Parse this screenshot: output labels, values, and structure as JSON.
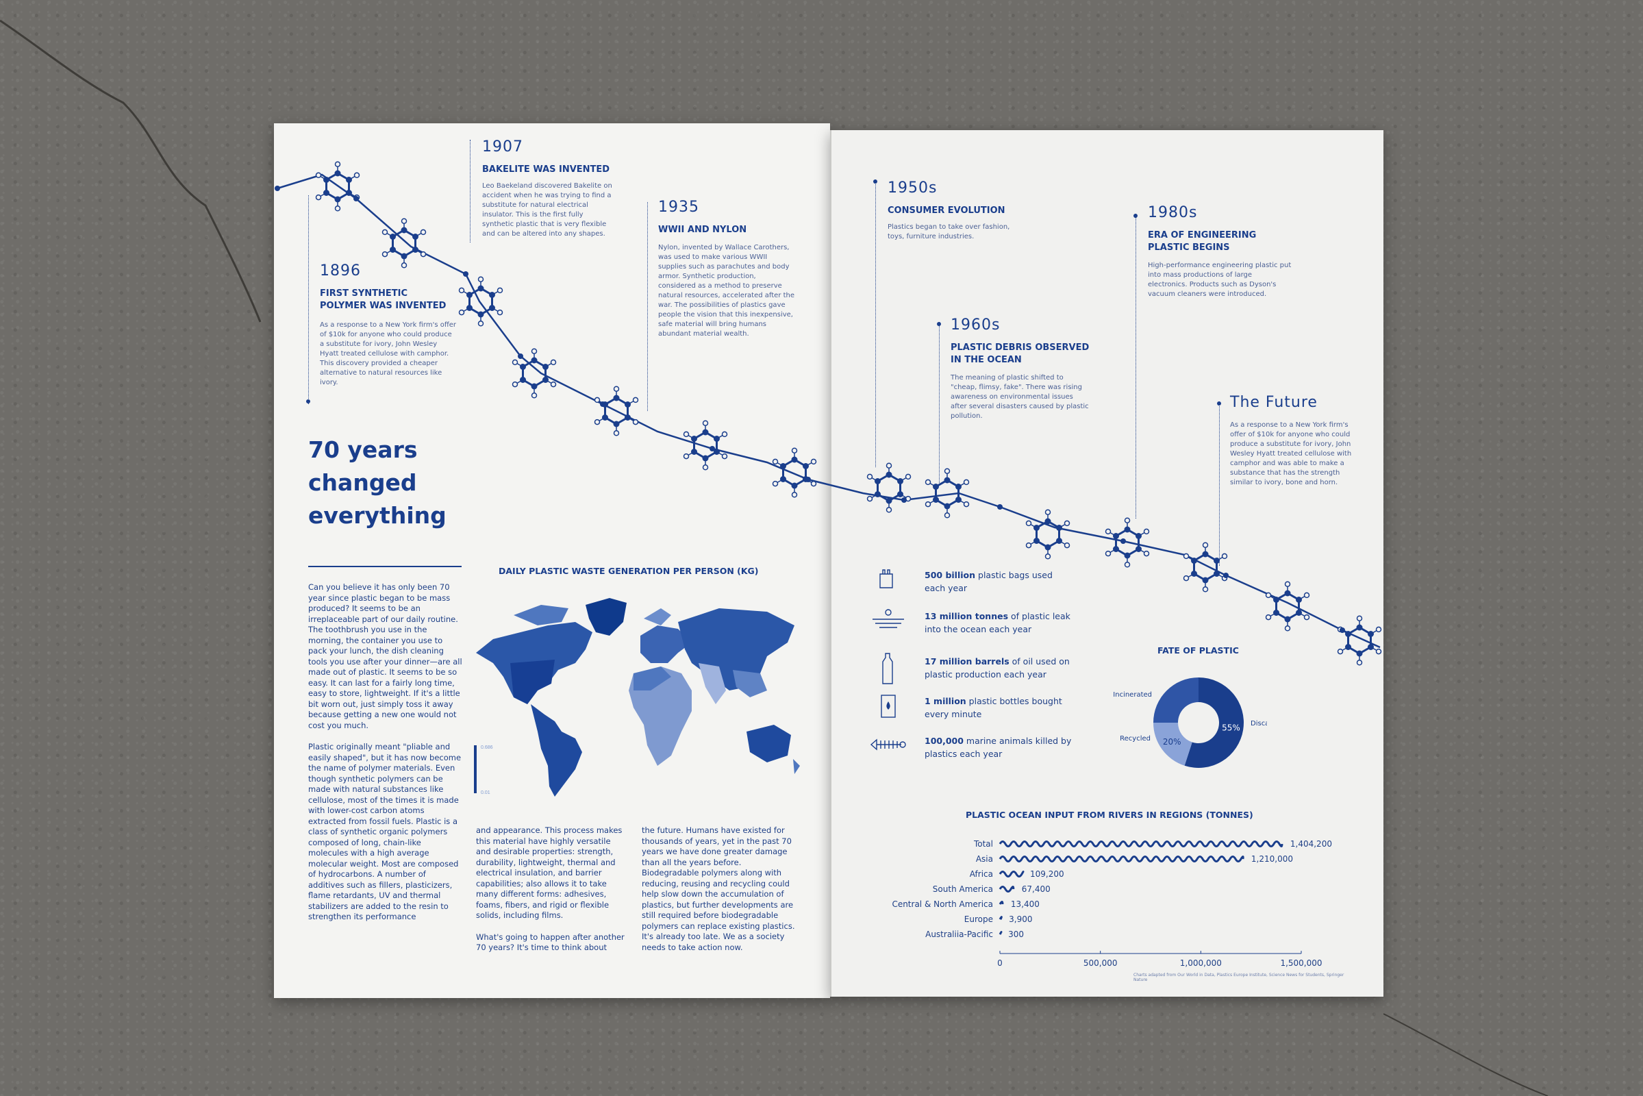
{
  "timeline": [
    {
      "year": "1896",
      "title": "FIRST SYNTHETIC POLYMER WAS INVENTED",
      "body": "As a response to a New York firm's offer of $10k for anyone who could produce a substitute for ivory, John Wesley Hyatt treated cellulose with camphor. This discovery provided a cheaper alternative to natural resources like ivory."
    },
    {
      "year": "1907",
      "title": "BAKELITE WAS INVENTED",
      "body": "Leo Baekeland discovered Bakelite on accident when he was trying to find a substitute for natural electrical insulator. This is the first fully synthetic plastic that is very flexible and can be altered into any shapes."
    },
    {
      "year": "1935",
      "title": "WWII AND NYLON",
      "body": "Nylon, invented by Wallace Carothers, was used to make various WWII supplies such as parachutes and body armor. Synthetic production, considered as a method to preserve natural resources, accelerated after the war. The possibilities of plastics gave people the vision that this inexpensive, safe material will bring humans abundant material wealth."
    },
    {
      "year": "1950s",
      "title": "CONSUMER EVOLUTION",
      "body": "Plastics began to take over fashion, toys, furniture industries."
    },
    {
      "year": "1960s",
      "title": "PLASTIC DEBRIS OBSERVED IN THE OCEAN",
      "body": "The meaning of plastic shifted to \"cheap, flimsy, fake\". There was rising awareness on environmental issues after several disasters caused by plastic pollution."
    },
    {
      "year": "1980s",
      "title": "ERA OF ENGINEERING PLASTIC BEGINS",
      "body": "High-performance engineering plastic put into mass productions of large electronics. Products such as Dyson's vacuum cleaners were introduced."
    },
    {
      "year": "The Future",
      "title": "",
      "body": "As a response to a New York firm's offer of $10k for anyone who could produce a substitute for ivory, John Wesley Hyatt treated cellulose with camphor and was able to make a substance that has the strength similar to ivory, bone and horn."
    }
  ],
  "headline": "70 years changed everything",
  "article": {
    "col1_p1": "Can you believe it has only been 70 year since plastic began to be mass produced? It seems to be an irreplaceable part of our daily routine. The toothbrush you use in the morning, the container you use to pack your lunch, the dish cleaning tools you use after your dinner—are all made out of plastic. It seems to be so easy. It can last for a fairly long time, easy to store, lightweight. If it's a little bit worn out, just simply toss it away because getting a new one would not cost you much.",
    "col1_p2": "Plastic originally meant \"pliable and easily shaped\", but it has now become the name of polymer materials. Even though synthetic polymers can be made with natural substances like cellulose, most of the times it is made with lower-cost carbon atoms extracted from fossil fuels. Plastic is a class of synthetic organic polymers composed of long, chain-like molecules with a high average molecular weight. Most are composed of hydrocarbons. A number of additives such as fillers, plasticizers, flame retardants, UV and thermal stabilizers are added to the resin to strengthen its performance",
    "col2_p1": "and appearance. This process makes this material have highly versatile and desirable properties: strength, durability, lightweight, thermal and electrical insulation, and barrier capabilities; also allows it to take many different forms: adhesives, foams, fibers, and rigid or flexible solids, including films.",
    "col2_p2": "What's going to happen after another 70 years? It's time to think about",
    "col3_p1": "the future. Humans have existed for thousands of years, yet in the past 70 years we have done greater damage than all the years before. Biodegradable polymers along with reducing, reusing and recycling could help slow down the accumulation of plastics, but further developments are still required before biodegradable polymers can replace existing plastics. It's already too late. We as a society needs to take action now."
  },
  "map": {
    "title": "DAILY PLASTIC WASTE GENERATION PER PERSON (KG)",
    "legend_max": "0.686",
    "legend_min": "0.01"
  },
  "stats": [
    {
      "icon": "plastic-bag-icon",
      "bold": "500 billion",
      "rest": " plastic bags used each year"
    },
    {
      "icon": "ocean-leak-icon",
      "bold": "13 million tonnes",
      "rest": " of plastic leak into the ocean each year"
    },
    {
      "icon": "bottle-icon",
      "bold": "17 million barrels",
      "rest": " of oil used on plastic production each year"
    },
    {
      "icon": "oil-barrel-icon",
      "bold": "1 million",
      "rest": " plastic bottles bought every minute"
    },
    {
      "icon": "fish-skeleton-icon",
      "bold": "100,000",
      "rest": " marine animals killed by plastics each year"
    }
  ],
  "colors": {
    "accent": "#1a3e8c",
    "light": "#7f9ad0",
    "paper": "#f4f4f2"
  },
  "chart_data": [
    {
      "type": "pie",
      "title": "FATE OF PLASTIC",
      "labels": [
        "Discarded",
        "Incinerated",
        "Recycled"
      ],
      "values": [
        55,
        25,
        20
      ],
      "value_labels": [
        "55%",
        "",
        "20%"
      ]
    },
    {
      "type": "bar",
      "title": "PLASTIC OCEAN INPUT FROM RIVERS IN REGIONS (TONNES)",
      "categories": [
        "Total",
        "Asia",
        "Africa",
        "South America",
        "Central & North America",
        "Europe",
        "Australiia-Pacific"
      ],
      "values": [
        1404200,
        1210000,
        109200,
        67400,
        13400,
        3900,
        300
      ],
      "value_labels": [
        "1,404,200",
        "1,210,000",
        "109,200",
        "67,400",
        "13,400",
        "3,900",
        "300"
      ],
      "xlim": [
        0,
        1500000
      ],
      "xticks": [
        "0",
        "500,000",
        "1,000,000",
        "1,500,000"
      ]
    }
  ],
  "footnote": "Charts adapted from Our World in Data, Plastics Europe Institute, Science News for Students, Springer Nature"
}
